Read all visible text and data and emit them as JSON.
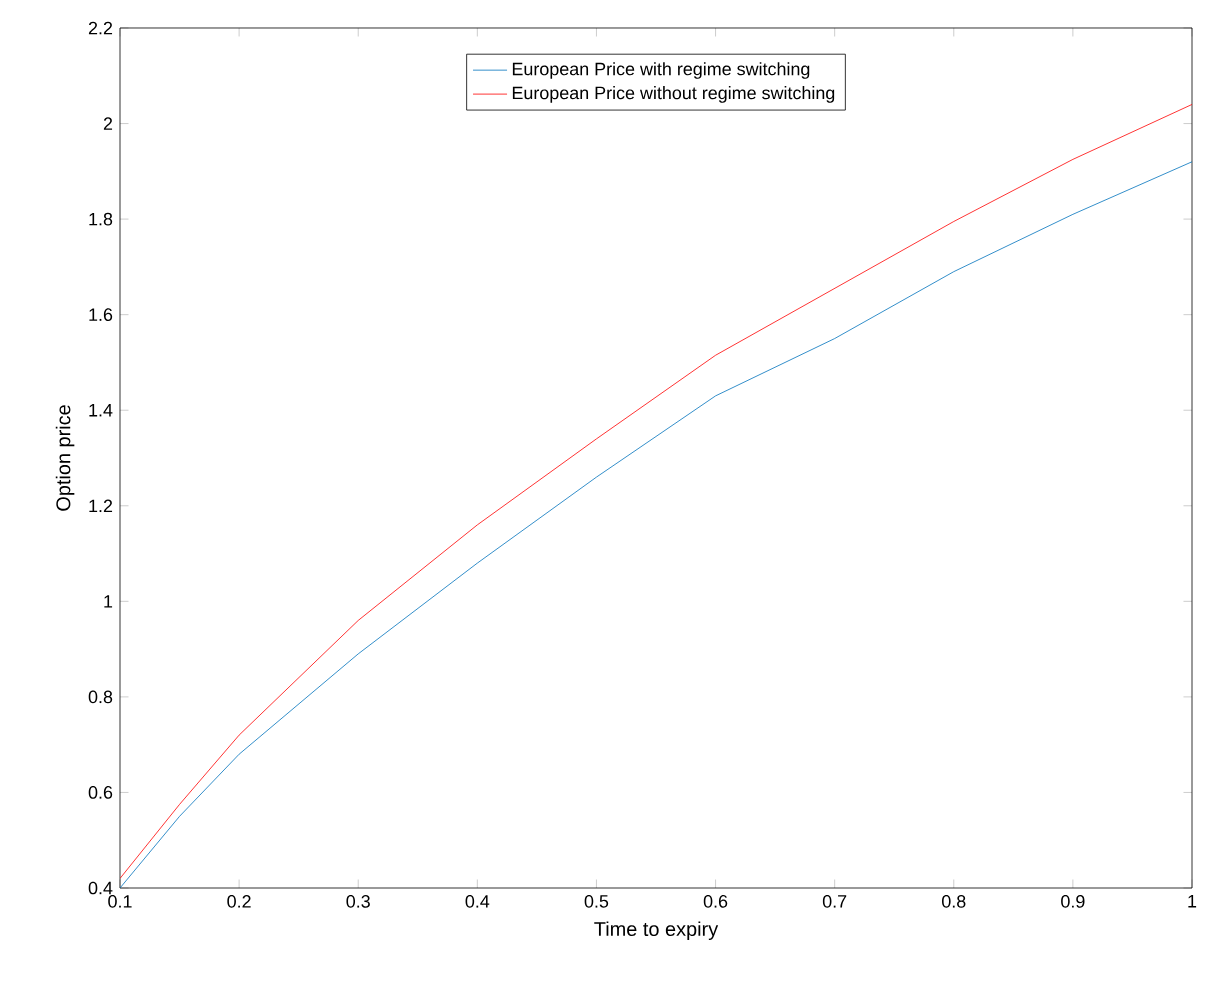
{
  "chart_data": {
    "type": "line",
    "xlabel": "Time to expiry",
    "ylabel": "Option price",
    "xlim": [
      0.1,
      1.0
    ],
    "ylim": [
      0.4,
      2.2
    ],
    "xticks": [
      0.1,
      0.2,
      0.3,
      0.4,
      0.5,
      0.6,
      0.7,
      0.8,
      0.9,
      1
    ],
    "yticks": [
      0.4,
      0.6,
      0.8,
      1,
      1.2,
      1.4,
      1.6,
      1.8,
      2,
      2.2
    ],
    "x": [
      0.1,
      0.15,
      0.2,
      0.3,
      0.4,
      0.5,
      0.6,
      0.7,
      0.8,
      0.9,
      1.0
    ],
    "series": [
      {
        "name": "European Price with regime switching",
        "color": "#0072bd",
        "values": [
          0.4,
          0.55,
          0.68,
          0.89,
          1.08,
          1.26,
          1.43,
          1.55,
          1.69,
          1.81,
          1.92
        ]
      },
      {
        "name": "European Price without regime switching",
        "color": "#ff0000",
        "values": [
          0.42,
          0.575,
          0.72,
          0.96,
          1.16,
          1.34,
          1.515,
          1.655,
          1.795,
          1.925,
          2.04
        ]
      }
    ],
    "legend": "top",
    "grid": false,
    "line_style": "solid",
    "marker": "none"
  }
}
